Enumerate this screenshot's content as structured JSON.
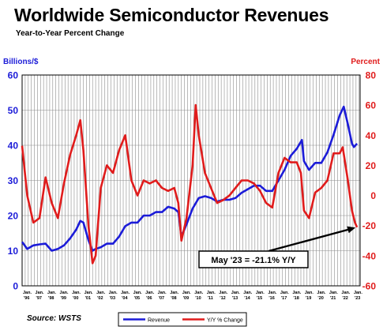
{
  "title": "Worldwide Semiconductor Revenues",
  "subtitle": "Year-to-Year Percent Change",
  "source": "Source: WSTS",
  "colors": {
    "revenue": "#1c1cd8",
    "change": "#e01c1c",
    "grid": "#8c8c8c"
  },
  "chart_data": {
    "type": "line",
    "y_left": {
      "label": "Billions/$",
      "range": [
        0,
        60
      ],
      "ticks": [
        0,
        10,
        20,
        30,
        40,
        50,
        60
      ],
      "tick_labels": [
        "0",
        "10",
        "20",
        "30",
        "40",
        "50",
        "60"
      ]
    },
    "y_right": {
      "label": "Percent",
      "range": [
        -60,
        80
      ],
      "ticks": [
        -60,
        -40,
        -20,
        0,
        20,
        40,
        60,
        80
      ],
      "tick_labels": [
        "-60",
        "-40",
        "-20",
        "0",
        "20",
        "40",
        "60",
        "80"
      ]
    },
    "x_ticks": [
      {
        "label": "Jan.",
        "year": "'96"
      },
      {
        "label": "Jan.",
        "year": "'97"
      },
      {
        "label": "Jan.",
        "year": "'98"
      },
      {
        "label": "Jan.",
        "year": "'99"
      },
      {
        "label": "Jan.",
        "year": "'00"
      },
      {
        "label": "Jan.",
        "year": "'01"
      },
      {
        "label": "Jan.",
        "year": "'02"
      },
      {
        "label": "Jan.",
        "year": "'03"
      },
      {
        "label": "Jan.",
        "year": "'04"
      },
      {
        "label": "Jan.",
        "year": "'05"
      },
      {
        "label": "Jan.",
        "year": "'06"
      },
      {
        "label": "Jan.",
        "year": "'07"
      },
      {
        "label": "Jan.",
        "year": "'08"
      },
      {
        "label": "Jan.",
        "year": "'09"
      },
      {
        "label": "Jan.",
        "year": "'10"
      },
      {
        "label": "Jan.",
        "year": "'11"
      },
      {
        "label": "Jan.",
        "year": "'12"
      },
      {
        "label": "Jan.",
        "year": "'13"
      },
      {
        "label": "Jan.",
        "year": "'14"
      },
      {
        "label": "Jan.",
        "year": "'15"
      },
      {
        "label": "Jan.",
        "year": "'16"
      },
      {
        "label": "Jan.",
        "year": "'17"
      },
      {
        "label": "Jan.",
        "year": "'18"
      },
      {
        "label": "Jan.",
        "year": "'19"
      },
      {
        "label": "Jan.",
        "year": "'20"
      },
      {
        "label": "Jan.",
        "year": "'21"
      },
      {
        "label": "Jan.",
        "year": "'22"
      },
      {
        "label": "Jan.",
        "year": "'23"
      }
    ],
    "series": [
      {
        "name": "Revenue",
        "axis": "left",
        "points": [
          [
            "1996-01",
            12.5
          ],
          [
            "1996-06",
            10.5
          ],
          [
            "1996-12",
            11.5
          ],
          [
            "1997-06",
            11.8
          ],
          [
            "1997-12",
            12.0
          ],
          [
            "1998-06",
            10.0
          ],
          [
            "1998-12",
            10.5
          ],
          [
            "1999-06",
            11.5
          ],
          [
            "1999-12",
            13.5
          ],
          [
            "2000-06",
            16.0
          ],
          [
            "2000-10",
            18.5
          ],
          [
            "2001-01",
            18.0
          ],
          [
            "2001-06",
            13.0
          ],
          [
            "2001-10",
            10.0
          ],
          [
            "2002-01",
            10.5
          ],
          [
            "2002-06",
            11.0
          ],
          [
            "2002-12",
            12.0
          ],
          [
            "2003-06",
            12.0
          ],
          [
            "2003-12",
            14.0
          ],
          [
            "2004-06",
            17.0
          ],
          [
            "2004-12",
            18.0
          ],
          [
            "2005-06",
            18.0
          ],
          [
            "2005-12",
            20.0
          ],
          [
            "2006-06",
            20.0
          ],
          [
            "2006-12",
            21.0
          ],
          [
            "2007-06",
            21.0
          ],
          [
            "2007-12",
            22.5
          ],
          [
            "2008-06",
            22.0
          ],
          [
            "2008-10",
            21.0
          ],
          [
            "2009-01",
            14.0
          ],
          [
            "2009-06",
            17.5
          ],
          [
            "2009-12",
            22.0
          ],
          [
            "2010-06",
            25.0
          ],
          [
            "2010-12",
            25.5
          ],
          [
            "2011-06",
            25.0
          ],
          [
            "2011-12",
            24.0
          ],
          [
            "2012-06",
            24.5
          ],
          [
            "2012-12",
            24.5
          ],
          [
            "2013-06",
            25.0
          ],
          [
            "2013-12",
            26.5
          ],
          [
            "2014-06",
            27.5
          ],
          [
            "2014-12",
            28.5
          ],
          [
            "2015-06",
            28.5
          ],
          [
            "2015-12",
            27.0
          ],
          [
            "2016-06",
            27.0
          ],
          [
            "2016-12",
            30.0
          ],
          [
            "2017-06",
            33.0
          ],
          [
            "2017-12",
            37.0
          ],
          [
            "2018-06",
            39.0
          ],
          [
            "2018-11",
            41.5
          ],
          [
            "2019-01",
            35.5
          ],
          [
            "2019-06",
            33.0
          ],
          [
            "2019-12",
            35.0
          ],
          [
            "2020-06",
            35.0
          ],
          [
            "2020-12",
            38.0
          ],
          [
            "2021-06",
            43.0
          ],
          [
            "2021-12",
            48.5
          ],
          [
            "2022-04",
            51.0
          ],
          [
            "2022-08",
            46.0
          ],
          [
            "2022-12",
            40.5
          ],
          [
            "2023-02",
            39.5
          ],
          [
            "2023-05",
            40.5
          ]
        ]
      },
      {
        "name": "Y/Y % Change",
        "axis": "right",
        "points": [
          [
            "1996-01",
            33
          ],
          [
            "1996-06",
            0
          ],
          [
            "1996-12",
            -18
          ],
          [
            "1997-06",
            -15
          ],
          [
            "1997-12",
            12
          ],
          [
            "1998-06",
            -5
          ],
          [
            "1998-12",
            -15
          ],
          [
            "1999-06",
            8
          ],
          [
            "1999-12",
            27
          ],
          [
            "2000-06",
            40
          ],
          [
            "2000-10",
            50
          ],
          [
            "2001-01",
            30
          ],
          [
            "2001-06",
            -20
          ],
          [
            "2001-10",
            -45
          ],
          [
            "2002-01",
            -40
          ],
          [
            "2002-06",
            5
          ],
          [
            "2002-12",
            20
          ],
          [
            "2003-06",
            15
          ],
          [
            "2003-12",
            30
          ],
          [
            "2004-06",
            40
          ],
          [
            "2004-12",
            10
          ],
          [
            "2005-06",
            0
          ],
          [
            "2005-12",
            10
          ],
          [
            "2006-06",
            8
          ],
          [
            "2006-12",
            10
          ],
          [
            "2007-06",
            5
          ],
          [
            "2007-12",
            3
          ],
          [
            "2008-06",
            5
          ],
          [
            "2008-10",
            -5
          ],
          [
            "2009-01",
            -30
          ],
          [
            "2009-06",
            -15
          ],
          [
            "2009-12",
            20
          ],
          [
            "2010-03",
            60
          ],
          [
            "2010-06",
            40
          ],
          [
            "2010-12",
            15
          ],
          [
            "2011-06",
            5
          ],
          [
            "2011-12",
            -5
          ],
          [
            "2012-06",
            -3
          ],
          [
            "2012-12",
            0
          ],
          [
            "2013-06",
            5
          ],
          [
            "2013-12",
            10
          ],
          [
            "2014-06",
            10
          ],
          [
            "2014-12",
            8
          ],
          [
            "2015-06",
            3
          ],
          [
            "2015-12",
            -5
          ],
          [
            "2016-06",
            -8
          ],
          [
            "2016-12",
            15
          ],
          [
            "2017-06",
            25
          ],
          [
            "2017-12",
            22
          ],
          [
            "2018-06",
            22
          ],
          [
            "2018-10",
            15
          ],
          [
            "2019-01",
            -10
          ],
          [
            "2019-06",
            -15
          ],
          [
            "2019-12",
            2
          ],
          [
            "2020-06",
            5
          ],
          [
            "2020-12",
            10
          ],
          [
            "2021-06",
            28
          ],
          [
            "2021-12",
            28
          ],
          [
            "2022-03",
            32
          ],
          [
            "2022-08",
            10
          ],
          [
            "2022-12",
            -10
          ],
          [
            "2023-03",
            -18
          ],
          [
            "2023-05",
            -21.1
          ]
        ]
      }
    ],
    "legend": {
      "position": "bottom",
      "items": [
        "Revenue",
        "Y/Y % Change"
      ]
    },
    "grid": true,
    "annotation": {
      "text": "May '23 = -21.1% Y/Y",
      "target_date": "2023-05",
      "target_value": -21.1
    }
  }
}
